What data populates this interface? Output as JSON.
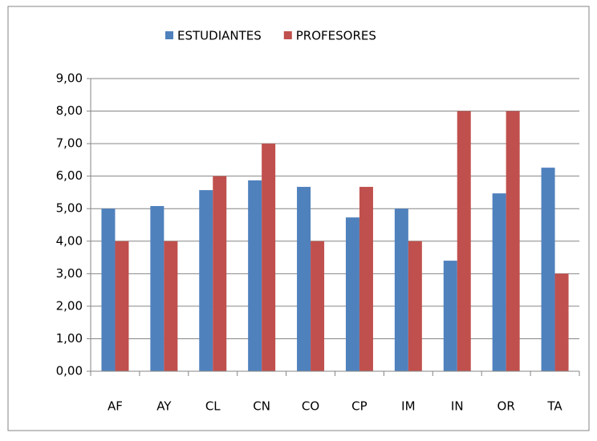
{
  "chart_data": {
    "type": "bar",
    "categories": [
      "AF",
      "AY",
      "CL",
      "CN",
      "CO",
      "CP",
      "IM",
      "IN",
      "OR",
      "TA"
    ],
    "series": [
      {
        "name": "ESTUDIANTES",
        "color": "#4f81bd",
        "values": [
          5.0,
          5.08,
          5.57,
          5.87,
          5.67,
          4.73,
          5.0,
          3.4,
          5.47,
          6.26
        ]
      },
      {
        "name": "PROFESORES",
        "color": "#c0504d",
        "values": [
          4.0,
          4.0,
          6.0,
          7.0,
          4.0,
          5.67,
          4.0,
          8.0,
          8.0,
          3.0
        ]
      }
    ],
    "ylim": [
      0,
      9
    ],
    "yticks": [
      {
        "value": 0,
        "label": "0,00"
      },
      {
        "value": 1,
        "label": "1,00"
      },
      {
        "value": 2,
        "label": "2,00"
      },
      {
        "value": 3,
        "label": "3,00"
      },
      {
        "value": 4,
        "label": "4,00"
      },
      {
        "value": 5,
        "label": "5,00"
      },
      {
        "value": 6,
        "label": "6,00"
      },
      {
        "value": 7,
        "label": "7,00"
      },
      {
        "value": 8,
        "label": "8,00"
      },
      {
        "value": 9,
        "label": "9,00"
      }
    ],
    "grid": true,
    "legend": "top"
  }
}
